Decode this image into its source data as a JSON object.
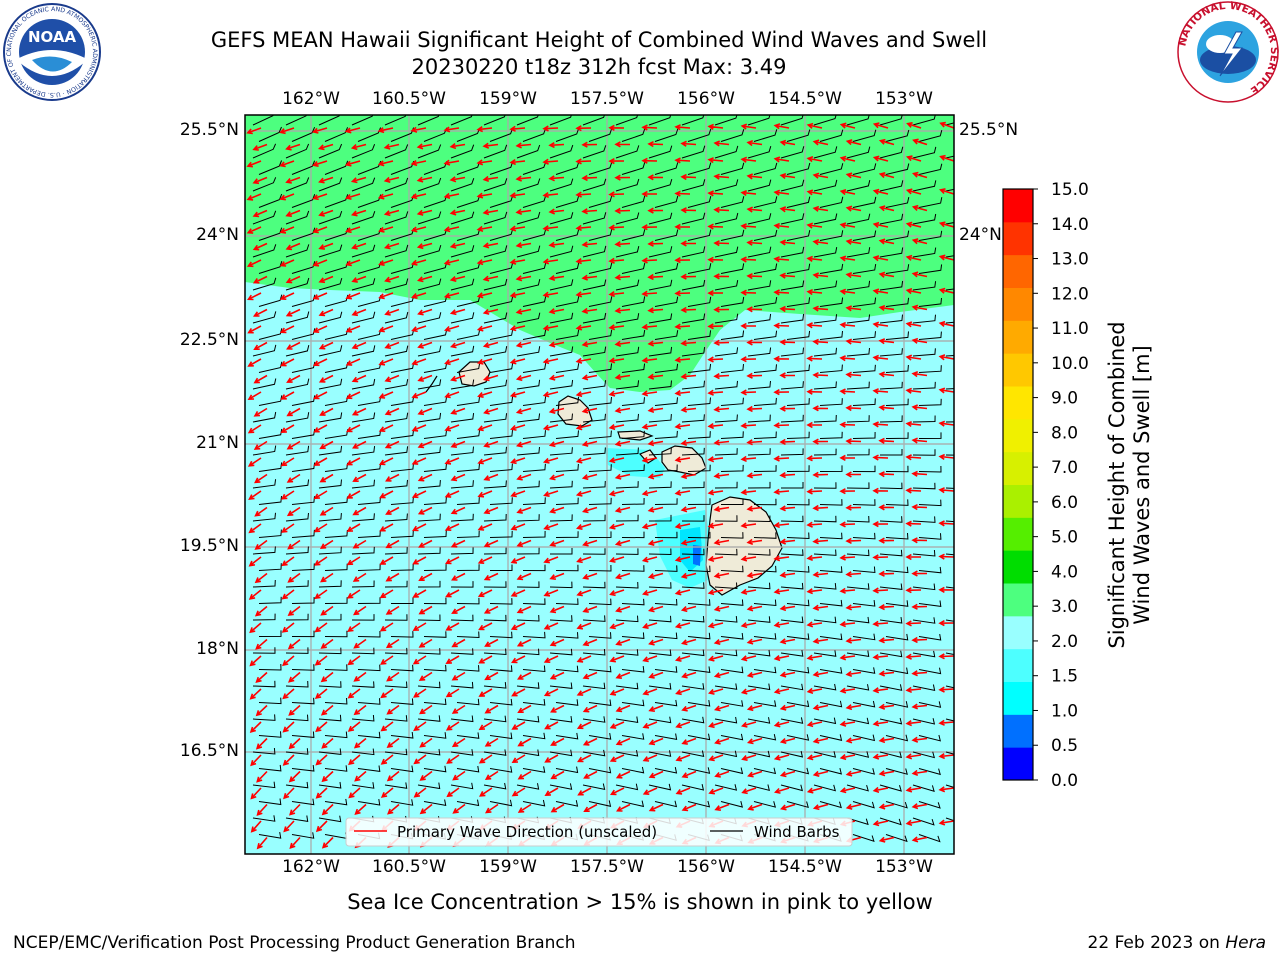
{
  "title": {
    "line1": "GEFS MEAN Hawaii Significant Height of Combined Wind Waves and Swell",
    "line2": "20230220 t18z 312h fcst   Max: 3.49"
  },
  "map": {
    "region": "Hawaii",
    "lon_ticks": [
      "162°W",
      "160.5°W",
      "159°W",
      "157.5°W",
      "156°W",
      "154.5°W",
      "153°W"
    ],
    "lat_ticks": [
      "25.5°N",
      "24°N",
      "22.5°N",
      "21°N",
      "19.5°N",
      "18°N",
      "16.5°N"
    ],
    "colors": {
      "ocean_low": "#99ffff",
      "ocean_mid": "#4dff4d",
      "lee_zone": "#4dffff",
      "land": "#efebd8",
      "grid": "#aaaaaa",
      "wave_arrow": "#ff0000",
      "barb": "#000000"
    }
  },
  "legend": {
    "wave_label": "Primary Wave Direction (unscaled)",
    "barb_label": "Wind Barbs"
  },
  "colorbar": {
    "label_line1": "Significant Height of Combined",
    "label_line2": "Wind Waves and Swell [m]",
    "ticks": [
      "15.0",
      "14.0",
      "13.0",
      "12.0",
      "11.0",
      "10.0",
      "9.0",
      "8.0",
      "7.0",
      "6.0",
      "5.0",
      "4.0",
      "3.0",
      "2.0",
      "1.5",
      "1.0",
      "0.5",
      "0.0"
    ],
    "colors": [
      "#0000ff",
      "#0070ff",
      "#00ffff",
      "#4dffff",
      "#99ffff",
      "#4dff7f",
      "#00dd00",
      "#55ee00",
      "#aaf000",
      "#d7f000",
      "#f0f000",
      "#ffe600",
      "#ffc800",
      "#ffaa00",
      "#ff8800",
      "#ff6600",
      "#ff3300",
      "#ff0000"
    ]
  },
  "caption": "Sea Ice Concentration > 15% is shown in pink to yellow",
  "footer": {
    "left": "NCEP/EMC/Verification Post Processing Product Generation Branch",
    "right_date": "22 Feb 2023 on ",
    "right_host": "Hera"
  },
  "logos": {
    "noaa_text": "NOAA",
    "noaa_ring": "NATIONAL OCEANIC AND ATMOSPHERIC ADMINISTRATION · U.S. DEPARTMENT OF COMMERCE",
    "nws_ring": "NATIONAL WEATHER SERVICE"
  }
}
